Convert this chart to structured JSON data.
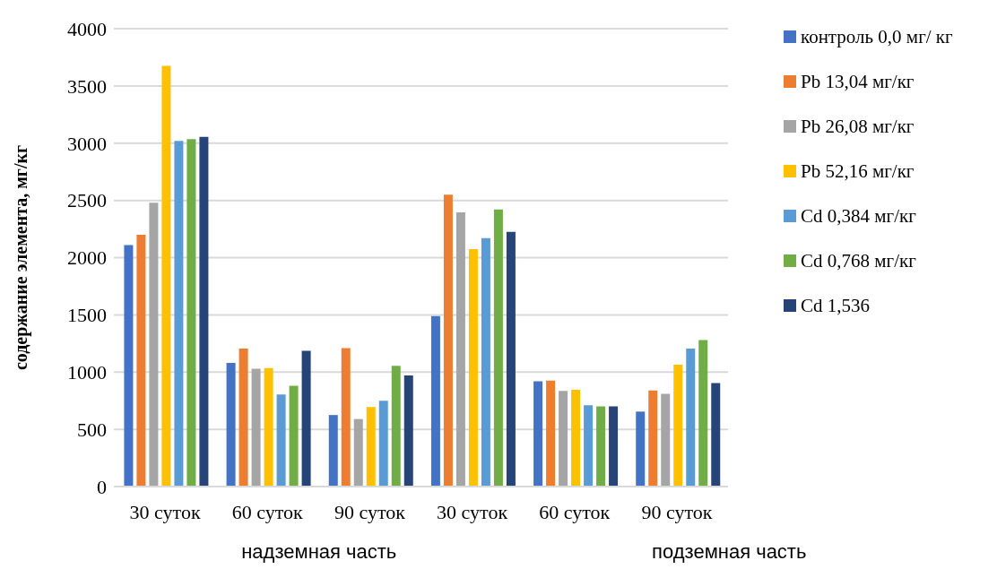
{
  "chart_data": {
    "type": "bar",
    "ylabel": "содержание элемента, мг/кг",
    "categories": [
      "30 суток",
      "60 суток",
      "90 суток",
      "30 суток",
      "60 суток",
      "90 суток"
    ],
    "annotations": [
      "надземная часть",
      "подземная часть"
    ],
    "series": [
      {
        "name": "контроль 0,0 мг/ кг",
        "color": "#4472c4",
        "values": [
          2110,
          1080,
          625,
          1490,
          920,
          655
        ]
      },
      {
        "name": "Pb 13,04 мг/кг",
        "color": "#ed7d31",
        "values": [
          2200,
          1205,
          1210,
          2550,
          925,
          840
        ]
      },
      {
        "name": "Pb 26,08 мг/кг",
        "color": "#a5a5a5",
        "values": [
          2480,
          1030,
          590,
          2395,
          835,
          810
        ]
      },
      {
        "name": "Pb 52,16 мг/кг",
        "color": "#ffc000",
        "values": [
          3675,
          1035,
          695,
          2075,
          845,
          1065
        ]
      },
      {
        "name": "Cd 0,384 мг/кг",
        "color": "#5b9bd5",
        "values": [
          3020,
          805,
          750,
          2170,
          710,
          1205
        ]
      },
      {
        "name": "Cd 0,768 мг/кг",
        "color": "#70ad47",
        "values": [
          3035,
          880,
          1055,
          2420,
          700,
          1280
        ]
      },
      {
        "name": "Cd 1,536",
        "color": "#264478",
        "values": [
          3055,
          1185,
          970,
          2225,
          700,
          905
        ]
      }
    ],
    "ylim": [
      0,
      4000
    ],
    "yticks": [
      0,
      500,
      1000,
      1500,
      2000,
      2500,
      3000,
      3500,
      4000
    ],
    "grid": "y",
    "legend": "top right"
  }
}
